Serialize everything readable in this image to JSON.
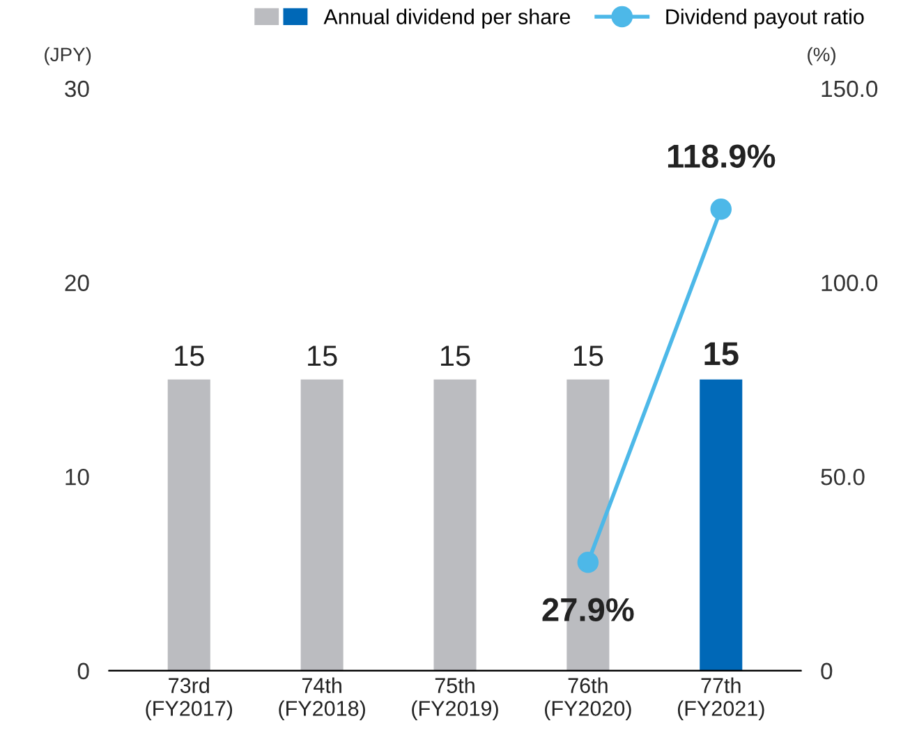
{
  "chart_data": {
    "type": "bar",
    "categories": [
      "73rd\n(FY2017)",
      "74th\n(FY2018)",
      "75th\n(FY2019)",
      "76th\n(FY2020)",
      "77th\n(FY2021)"
    ],
    "ylabel": "(JPY)",
    "y2label": "(%)",
    "series": [
      {
        "name": "Annual dividend per share",
        "colors": [
          "#bbbcc0",
          "#bbbcc0",
          "#bbbcc0",
          "#bbbcc0",
          "#0068b7"
        ],
        "values": [
          15,
          15,
          15,
          15,
          15
        ],
        "value_labels": [
          "15",
          "15",
          "15",
          "15",
          "15"
        ]
      },
      {
        "name": "Dividend payout ratio",
        "type": "line",
        "axis": "y2",
        "color": "#4db8e8",
        "marker": "circle",
        "values": [
          null,
          null,
          null,
          27.9,
          118.9
        ],
        "value_labels": [
          null,
          null,
          null,
          "27.9%",
          "118.9%"
        ]
      }
    ],
    "ylim": [
      0,
      30
    ],
    "yticks": [
      0,
      10,
      20,
      30
    ],
    "y2lim": [
      0,
      150
    ],
    "y2ticks": [
      0,
      {
        "value": 50,
        "label": "50.0"
      },
      {
        "value": 100,
        "label": "100.0"
      },
      {
        "value": 150,
        "label": "150.0"
      }
    ],
    "grid": false,
    "legend": "top right"
  }
}
